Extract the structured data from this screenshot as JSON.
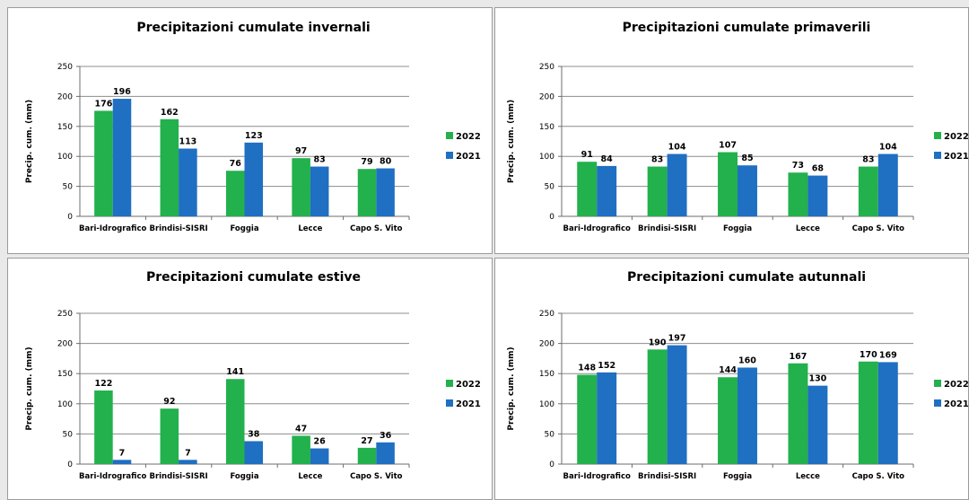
{
  "colors": {
    "series_2022": "#22b14c",
    "series_2021": "#1f6fc2",
    "grid": "#8c8c8c",
    "axis": "#6e6e6e"
  },
  "chart_data": [
    {
      "type": "bar",
      "title": "Precipitazioni cumulate invernali",
      "ylabel": "Precip. cum. (mm)",
      "xlabel": "",
      "ylim": [
        0,
        250
      ],
      "yticks": [
        0,
        50,
        100,
        150,
        200,
        250
      ],
      "grid": true,
      "legend": "right",
      "categories": [
        "Bari-Idrografico",
        "Brindisi-SISRI",
        "Foggia",
        "Lecce",
        "Capo S. Vito"
      ],
      "series": [
        {
          "name": "2022",
          "values": [
            176,
            162,
            76,
            97,
            79
          ]
        },
        {
          "name": "2021",
          "values": [
            196,
            113,
            123,
            83,
            80
          ]
        }
      ]
    },
    {
      "type": "bar",
      "title": "Precipitazioni cumulate primaverili",
      "ylabel": "Precip. cum. (mm)",
      "xlabel": "",
      "ylim": [
        0,
        250
      ],
      "yticks": [
        0,
        50,
        100,
        150,
        200,
        250
      ],
      "grid": true,
      "legend": "right",
      "categories": [
        "Bari-Idrografico",
        "Brindisi-SISRI",
        "Foggia",
        "Lecce",
        "Capo S. Vito"
      ],
      "series": [
        {
          "name": "2022",
          "values": [
            91,
            83,
            107,
            73,
            83
          ]
        },
        {
          "name": "2021",
          "values": [
            84,
            104,
            85,
            68,
            104
          ]
        }
      ]
    },
    {
      "type": "bar",
      "title": "Precipitazioni cumulate estive",
      "ylabel": "Precip. cum. (mm)",
      "xlabel": "",
      "ylim": [
        0,
        250
      ],
      "yticks": [
        0,
        50,
        100,
        150,
        200,
        250
      ],
      "grid": true,
      "legend": "right",
      "categories": [
        "Bari-Idrografico",
        "Brindisi-SISRI",
        "Foggia",
        "Lecce",
        "Capo S. Vito"
      ],
      "series": [
        {
          "name": "2022",
          "values": [
            122,
            92,
            141,
            47,
            27
          ]
        },
        {
          "name": "2021",
          "values": [
            7,
            7,
            38,
            26,
            36
          ]
        }
      ]
    },
    {
      "type": "bar",
      "title": "Precipitazioni cumulate autunnali",
      "ylabel": "Precip. cum. (mm)",
      "xlabel": "",
      "ylim": [
        0,
        250
      ],
      "yticks": [
        0,
        50,
        100,
        150,
        200,
        250
      ],
      "grid": true,
      "legend": "right",
      "categories": [
        "Bari-Idrografico",
        "Brindisi-SISRI",
        "Foggia",
        "Lecce",
        "Capo S. Vito"
      ],
      "series": [
        {
          "name": "2022",
          "values": [
            148,
            190,
            144,
            167,
            170
          ]
        },
        {
          "name": "2021",
          "values": [
            152,
            197,
            160,
            130,
            169
          ]
        }
      ]
    }
  ]
}
